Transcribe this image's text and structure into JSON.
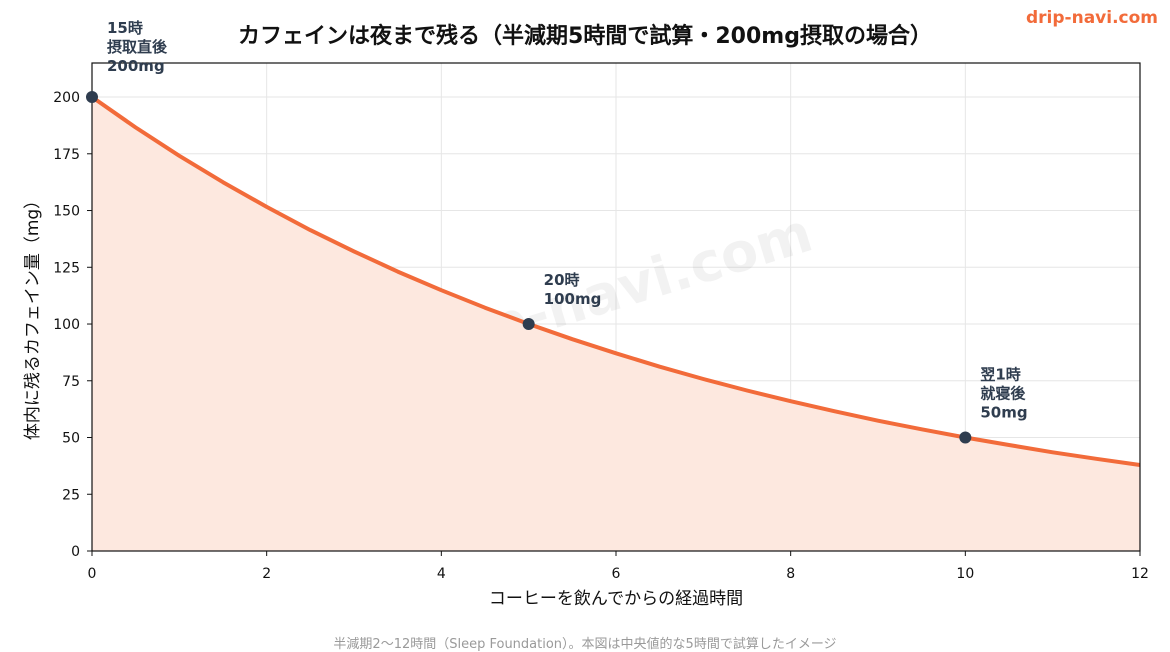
{
  "brand": "drip-navi.com",
  "footnote": "半減期2〜12時間（Sleep Foundation）。本図は中央値的な5時間で試算したイメージ",
  "colors": {
    "curve": "#f26b3a",
    "fill": "#fde8df",
    "point": "#2f3d4f",
    "grid": "#e6e6e6"
  },
  "chart_data": {
    "type": "area",
    "title": "カフェインは夜まで残る（半減期5時間で試算・200mg摂取の場合）",
    "xlabel": "コーヒーを飲んでからの経過時間",
    "ylabel": "体内に残るカフェイン量（mg）",
    "xlim": [
      0,
      12
    ],
    "ylim": [
      0,
      215
    ],
    "xticks": [
      0,
      2,
      4,
      6,
      8,
      10,
      12
    ],
    "yticks": [
      0,
      25,
      50,
      75,
      100,
      125,
      150,
      175,
      200
    ],
    "grid": true,
    "series": [
      {
        "x": [
          0,
          0.5,
          1,
          1.5,
          2,
          2.5,
          3,
          3.5,
          4,
          4.5,
          5,
          5.5,
          6,
          6.5,
          7,
          7.5,
          8,
          8.5,
          9,
          9.5,
          10,
          10.5,
          11,
          11.5,
          12
        ],
        "values": [
          200,
          186.6,
          174.1,
          162.5,
          151.6,
          141.4,
          132.0,
          123.1,
          114.9,
          107.2,
          100,
          93.3,
          87.1,
          81.2,
          75.8,
          70.7,
          66.0,
          61.6,
          57.4,
          53.6,
          50,
          46.7,
          43.5,
          40.6,
          37.9
        ]
      }
    ],
    "points": [
      {
        "x": 0,
        "y": 200,
        "label": [
          "15時",
          "摂取直後",
          "200mg"
        ]
      },
      {
        "x": 5,
        "y": 100,
        "label": [
          "20時",
          "100mg"
        ]
      },
      {
        "x": 10,
        "y": 50,
        "label": [
          "翌1時",
          "就寝後",
          "50mg"
        ]
      }
    ],
    "watermark": "drip-navi.com"
  }
}
